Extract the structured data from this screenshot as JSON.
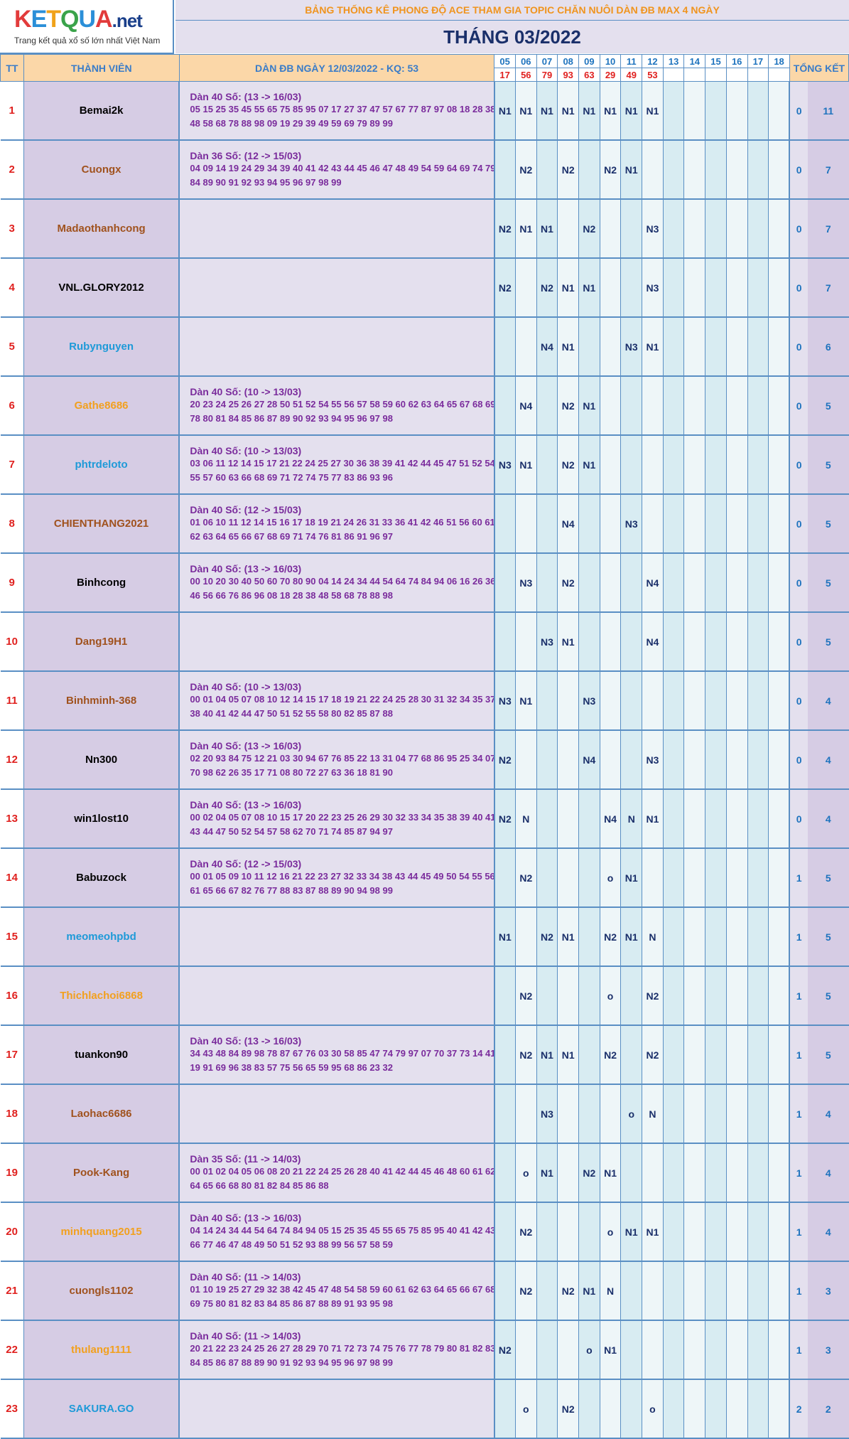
{
  "logo": {
    "brand": "KETQUA",
    "net": ".net",
    "tagline": "Trang kết quả xổ số lớn nhất Việt Nam"
  },
  "header": {
    "title": "BẢNG THỐNG KÊ PHONG ĐỘ ACE THAM GIA TOPIC CHĂN NUÔI DÀN ĐB MAX 4 NGÀY",
    "month": "THÁNG 03/2022",
    "col_tt": "TT",
    "col_member": "THÀNH VIÊN",
    "col_dan": "DÀN ĐB NGÀY 12/03/2022 - KQ: 53",
    "col_total": "TỔNG KẾT",
    "days": [
      "05",
      "06",
      "07",
      "08",
      "09",
      "10",
      "11",
      "12",
      "13",
      "14",
      "15",
      "16",
      "17",
      "18"
    ],
    "results": [
      "17",
      "56",
      "79",
      "93",
      "63",
      "29",
      "49",
      "53",
      "",
      "",
      "",
      "",
      "",
      ""
    ]
  },
  "colors": {
    "member_black": "#000000",
    "member_brown": "#a0521e",
    "member_blue": "#1e9ad8",
    "member_orange": "#f2a01e"
  },
  "rows": [
    {
      "tt": "1",
      "name": "Bemai2k",
      "color": "#000000",
      "dan_title": "Dàn 40 Số: (13 -> 16/03)",
      "dan_nums": "05 15 25 35 45 55 65 75 85 95 07 17 27 37 47 57 67 77 87 97 08 18 28 38 48 58 68 78 88 98 09 19 29 39 49 59 69 79 89 99",
      "days": [
        "N1",
        "N1",
        "N1",
        "N1",
        "N1",
        "N1",
        "N1",
        "N1",
        "",
        "",
        "",
        "",
        "",
        ""
      ],
      "t1": "0",
      "t2": "11"
    },
    {
      "tt": "2",
      "name": "Cuongx",
      "color": "#a0521e",
      "dan_title": "Dàn 36 Số: (12 -> 15/03)",
      "dan_nums": "04 09 14 19 24 29 34 39 40 41 42 43 44 45 46 47 48 49 54 59 64 69 74 79 84 89 90 91 92 93 94 95 96 97 98 99",
      "days": [
        "",
        "N2",
        "",
        "N2",
        "",
        "N2",
        "N1",
        "",
        "",
        "",
        "",
        "",
        "",
        ""
      ],
      "t1": "0",
      "t2": "7"
    },
    {
      "tt": "3",
      "name": "Madaothanhcong",
      "color": "#a0521e",
      "dan_title": "",
      "dan_nums": "",
      "days": [
        "N2",
        "N1",
        "N1",
        "",
        "N2",
        "",
        "",
        "N3",
        "",
        "",
        "",
        "",
        "",
        ""
      ],
      "t1": "0",
      "t2": "7"
    },
    {
      "tt": "4",
      "name": "VNL.GLORY2012",
      "color": "#000000",
      "dan_title": "",
      "dan_nums": "",
      "days": [
        "N2",
        "",
        "N2",
        "N1",
        "N1",
        "",
        "",
        "N3",
        "",
        "",
        "",
        "",
        "",
        ""
      ],
      "t1": "0",
      "t2": "7"
    },
    {
      "tt": "5",
      "name": "Rubynguyen",
      "color": "#1e9ad8",
      "dan_title": "",
      "dan_nums": "",
      "days": [
        "",
        "",
        "N4",
        "N1",
        "",
        "",
        "N3",
        "N1",
        "",
        "",
        "",
        "",
        "",
        ""
      ],
      "t1": "0",
      "t2": "6"
    },
    {
      "tt": "6",
      "name": "Gathe8686",
      "color": "#f2a01e",
      "dan_title": "Dàn 40 Số: (10 -> 13/03)",
      "dan_nums": "20 23 24 25 26 27 28 50 51 52 54 55 56 57 58 59 60 62 63 64 65 67 68 69 78 80 81 84 85 86 87 89 90 92 93 94 95 96 97 98",
      "days": [
        "",
        "N4",
        "",
        "N2",
        "N1",
        "",
        "",
        "",
        "",
        "",
        "",
        "",
        "",
        ""
      ],
      "t1": "0",
      "t2": "5"
    },
    {
      "tt": "7",
      "name": "phtrdeloto",
      "color": "#1e9ad8",
      "dan_title": "Dàn 40 Số: (10 -> 13/03)",
      "dan_nums": "03 06 11 12 14 15 17 21 22 24 25 27 30 36 38 39 41 42 44 45 47 51 52 54 55 57 60 63 66 68 69 71 72 74 75 77 83 86 93 96",
      "days": [
        "N3",
        "N1",
        "",
        "N2",
        "N1",
        "",
        "",
        "",
        "",
        "",
        "",
        "",
        "",
        ""
      ],
      "t1": "0",
      "t2": "5"
    },
    {
      "tt": "8",
      "name": "CHIENTHANG2021",
      "color": "#a0521e",
      "dan_title": "Dàn 40 Số: (12 -> 15/03)",
      "dan_nums": "01 06 10 11 12 14 15 16 17 18 19 21 24 26 31 33 36 41 42 46 51 56 60 61 62 63 64 65 66 67 68 69 71 74 76 81 86 91 96 97",
      "days": [
        "",
        "",
        "",
        "N4",
        "",
        "",
        "N3",
        "",
        "",
        "",
        "",
        "",
        "",
        ""
      ],
      "t1": "0",
      "t2": "5"
    },
    {
      "tt": "9",
      "name": "Binhcong",
      "color": "#000000",
      "dan_title": "Dàn 40 Số: (13 -> 16/03)",
      "dan_nums": "00 10 20 30 40 50 60 70 80 90 04 14 24 34 44 54 64 74 84 94 06 16 26 36 46 56 66 76 86 96 08 18 28 38 48 58 68 78 88 98",
      "days": [
        "",
        "N3",
        "",
        "N2",
        "",
        "",
        "",
        "N4",
        "",
        "",
        "",
        "",
        "",
        ""
      ],
      "t1": "0",
      "t2": "5"
    },
    {
      "tt": "10",
      "name": "Dang19H1",
      "color": "#a0521e",
      "dan_title": "",
      "dan_nums": "",
      "days": [
        "",
        "",
        "N3",
        "N1",
        "",
        "",
        "",
        "N4",
        "",
        "",
        "",
        "",
        "",
        ""
      ],
      "t1": "0",
      "t2": "5"
    },
    {
      "tt": "11",
      "name": "Binhminh-368",
      "color": "#a0521e",
      "dan_title": "Dàn 40 Số: (10 -> 13/03)",
      "dan_nums": "00 01 04 05 07 08 10 12 14 15 17 18 19 21 22 24 25 28 30 31 32 34 35 37 38 40 41 42 44 47 50 51 52 55 58 80 82 85 87 88",
      "days": [
        "N3",
        "N1",
        "",
        "",
        "N3",
        "",
        "",
        "",
        "",
        "",
        "",
        "",
        "",
        ""
      ],
      "t1": "0",
      "t2": "4"
    },
    {
      "tt": "12",
      "name": "Nn300",
      "color": "#000000",
      "dan_title": "Dàn 40 Số: (13 -> 16/03)",
      "dan_nums": "02 20 93 84 75 12 21 03 30 94 67 76 85 22 13 31 04 77 68 86 95 25 34 07 70 98 62 26 35 17 71 08 80 72 27 63 36 18 81 90",
      "days": [
        "N2",
        "",
        "",
        "",
        "N4",
        "",
        "",
        "N3",
        "",
        "",
        "",
        "",
        "",
        ""
      ],
      "t1": "0",
      "t2": "4"
    },
    {
      "tt": "13",
      "name": "win1lost10",
      "color": "#000000",
      "dan_title": "Dàn 40 Số: (13 -> 16/03)",
      "dan_nums": "00 02 04 05 07 08 10 15 17 20 22 23 25 26 29 30 32 33 34 35 38 39 40 41 43 44 47 50 52 54 57 58 62 70 71 74 85 87 94 97",
      "days": [
        "N2",
        "N",
        "",
        "",
        "",
        "N4",
        "N",
        "N1",
        "",
        "",
        "",
        "",
        "",
        ""
      ],
      "t1": "0",
      "t2": "4"
    },
    {
      "tt": "14",
      "name": "Babuzock",
      "color": "#000000",
      "dan_title": "Dàn 40 Số: (12 -> 15/03)",
      "dan_nums": "00 01 05 09 10 11 12 16 21 22 23 27 32 33 34 38 43 44 45 49 50 54 55 56 61 65 66 67 82 76 77 88 83 87 88 89 90 94 98 99",
      "days": [
        "",
        "N2",
        "",
        "",
        "",
        "o",
        "N1",
        "",
        "",
        "",
        "",
        "",
        "",
        ""
      ],
      "t1": "1",
      "t2": "5"
    },
    {
      "tt": "15",
      "name": "meomeohpbd",
      "color": "#1e9ad8",
      "dan_title": "",
      "dan_nums": "",
      "days": [
        "N1",
        "",
        "N2",
        "N1",
        "",
        "N2",
        "N1",
        "N",
        "",
        "",
        "",
        "",
        "",
        ""
      ],
      "t1": "1",
      "t2": "5"
    },
    {
      "tt": "16",
      "name": "Thichlachoi6868",
      "color": "#f2a01e",
      "dan_title": "",
      "dan_nums": "",
      "days": [
        "",
        "N2",
        "",
        "",
        "",
        "o",
        "",
        "N2",
        "",
        "",
        "",
        "",
        "",
        ""
      ],
      "t1": "1",
      "t2": "5"
    },
    {
      "tt": "17",
      "name": "tuankon90",
      "color": "#000000",
      "dan_title": "Dàn 40 Số: (13 -> 16/03)",
      "dan_nums": "34 43 48 84 89 98 78 87 67 76 03 30 58 85 47 74 79 97 07 70 37 73 14 41 19 91 69 96 38 83 57 75 56 65 59 95 68 86 23 32",
      "days": [
        "",
        "N2",
        "N1",
        "N1",
        "",
        "N2",
        "",
        "N2",
        "",
        "",
        "",
        "",
        "",
        ""
      ],
      "t1": "1",
      "t2": "5"
    },
    {
      "tt": "18",
      "name": "Laohac6686",
      "color": "#a0521e",
      "dan_title": "",
      "dan_nums": "",
      "days": [
        "",
        "",
        "N3",
        "",
        "",
        "",
        "o",
        "N",
        "",
        "",
        "",
        "",
        "",
        ""
      ],
      "t1": "1",
      "t2": "4"
    },
    {
      "tt": "19",
      "name": "Pook-Kang",
      "color": "#a0521e",
      "dan_title": "Dàn 35 Số: (11 -> 14/03)",
      "dan_nums": "00 01 02 04 05 06 08 20 21 22 24 25 26 28 40 41 42 44 45 46 48 60 61 62 64 65 66 68 80 81 82 84 85 86 88",
      "days": [
        "",
        "o",
        "N1",
        "",
        "N2",
        "N1",
        "",
        "",
        "",
        "",
        "",
        "",
        "",
        ""
      ],
      "t1": "1",
      "t2": "4"
    },
    {
      "tt": "20",
      "name": "minhquang2015",
      "color": "#f2a01e",
      "dan_title": "Dàn 40 Số: (13 -> 16/03)",
      "dan_nums": "04 14 24 34 44 54 64 74 84 94 05 15 25 35 45 55 65 75 85 95 40 41 42 43 66 77 46 47 48 49 50 51 52 93 88 99 56 57 58 59",
      "days": [
        "",
        "N2",
        "",
        "",
        "",
        "o",
        "N1",
        "N1",
        "",
        "",
        "",
        "",
        "",
        ""
      ],
      "t1": "1",
      "t2": "4"
    },
    {
      "tt": "21",
      "name": "cuongls1102",
      "color": "#a0521e",
      "dan_title": "Dàn 40 Số: (11 -> 14/03)",
      "dan_nums": "01 10 19 25 27 29 32 38 42 45 47 48 54 58 59 60 61 62 63 64 65 66 67 68 69 75 80 81 82 83 84 85 86 87 88 89 91 93 95 98",
      "days": [
        "",
        "N2",
        "",
        "N2",
        "N1",
        "N",
        "",
        "",
        "",
        "",
        "",
        "",
        "",
        ""
      ],
      "t1": "1",
      "t2": "3"
    },
    {
      "tt": "22",
      "name": "thulang1111",
      "color": "#f2a01e",
      "dan_title": "Dàn 40 Số: (11 -> 14/03)",
      "dan_nums": "20 21 22 23 24 25 26 27 28 29 70 71 72 73 74 75 76 77 78 79 80 81 82 83 84 85 86 87 88 89 90 91 92 93 94 95 96 97 98 99",
      "days": [
        "N2",
        "",
        "",
        "",
        "o",
        "N1",
        "",
        "",
        "",
        "",
        "",
        "",
        "",
        ""
      ],
      "t1": "1",
      "t2": "3"
    },
    {
      "tt": "23",
      "name": "SAKURA.GO",
      "color": "#1e9ad8",
      "dan_title": "",
      "dan_nums": "",
      "days": [
        "",
        "o",
        "",
        "N2",
        "",
        "",
        "",
        "o",
        "",
        "",
        "",
        "",
        "",
        ""
      ],
      "t1": "2",
      "t2": "2"
    }
  ]
}
